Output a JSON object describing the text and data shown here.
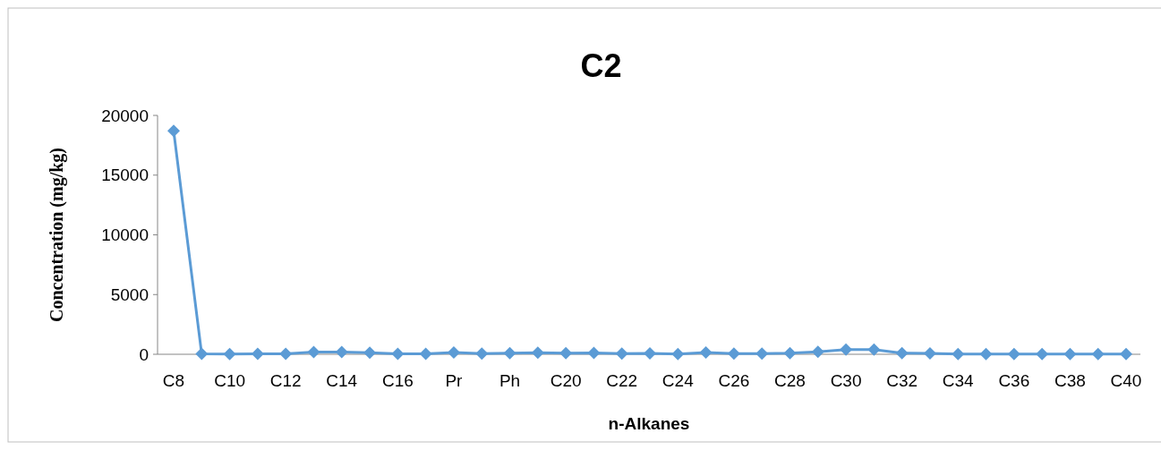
{
  "chart_data": {
    "type": "line",
    "title": "C2",
    "xlabel": "n-Alkanes",
    "ylabel": "Concentration (mg/kg)",
    "categories": [
      "C8",
      null,
      "C10",
      null,
      "C12",
      null,
      "C14",
      null,
      "C16",
      null,
      "Pr",
      null,
      "Ph",
      null,
      "C20",
      null,
      "C22",
      null,
      "C24",
      null,
      "C26",
      null,
      "C28",
      null,
      "C30",
      null,
      "C32",
      null,
      "C34",
      null,
      "C36",
      null,
      "C38",
      null,
      "C40"
    ],
    "series": [
      {
        "color": "#5b9bd5",
        "values": [
          18700,
          30,
          20,
          30,
          30,
          180,
          180,
          130,
          30,
          30,
          150,
          60,
          100,
          130,
          100,
          120,
          60,
          80,
          20,
          150,
          60,
          60,
          100,
          200,
          400,
          400,
          100,
          80,
          20,
          10,
          20,
          10,
          10,
          10,
          10
        ]
      }
    ],
    "ylim": [
      0,
      20000
    ],
    "yticks": [
      0,
      5000,
      10000,
      15000,
      20000
    ],
    "marker": "diamond",
    "line_style": "solid"
  }
}
